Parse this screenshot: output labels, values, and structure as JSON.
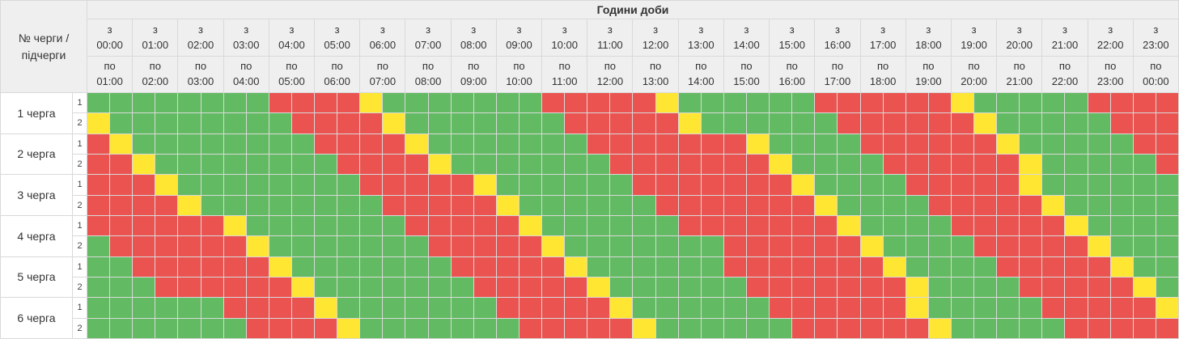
{
  "table": {
    "title": "Години доби",
    "corner_label": "№ черги / підчерги",
    "from_prefix": "з",
    "to_prefix": "по",
    "colors": {
      "green": "#62BA62",
      "red": "#EA5350",
      "yellow": "#FFE632"
    },
    "hours": [
      {
        "from": "00:00",
        "to": "01:00"
      },
      {
        "from": "01:00",
        "to": "02:00"
      },
      {
        "from": "02:00",
        "to": "03:00"
      },
      {
        "from": "03:00",
        "to": "04:00"
      },
      {
        "from": "04:00",
        "to": "05:00"
      },
      {
        "from": "05:00",
        "to": "06:00"
      },
      {
        "from": "06:00",
        "to": "07:00"
      },
      {
        "from": "07:00",
        "to": "08:00"
      },
      {
        "from": "08:00",
        "to": "09:00"
      },
      {
        "from": "09:00",
        "to": "10:00"
      },
      {
        "from": "10:00",
        "to": "11:00"
      },
      {
        "from": "11:00",
        "to": "12:00"
      },
      {
        "from": "12:00",
        "to": "13:00"
      },
      {
        "from": "13:00",
        "to": "14:00"
      },
      {
        "from": "14:00",
        "to": "15:00"
      },
      {
        "from": "15:00",
        "to": "16:00"
      },
      {
        "from": "16:00",
        "to": "17:00"
      },
      {
        "from": "17:00",
        "to": "18:00"
      },
      {
        "from": "18:00",
        "to": "19:00"
      },
      {
        "from": "19:00",
        "to": "20:00"
      },
      {
        "from": "20:00",
        "to": "21:00"
      },
      {
        "from": "21:00",
        "to": "22:00"
      },
      {
        "from": "22:00",
        "to": "23:00"
      },
      {
        "from": "23:00",
        "to": "00:00"
      }
    ],
    "cell_legend": "each hour column contains two half-hour cells; G=green, R=red, Y=yellow",
    "queues": [
      {
        "label": "1 черга",
        "sub": [
          {
            "id": "1",
            "cells": "GGGGGGGGRRRRYGGGGGGGRRRRRYGGGGGGRRRRRRYGGGGGRRRR"
          },
          {
            "id": "2",
            "cells": "YGGGGGGGGRRRRYGGGGGGGRRRRRYGGGGGGRRRRRRYGGGGGRRR"
          }
        ]
      },
      {
        "label": "2 черга",
        "sub": [
          {
            "id": "1",
            "cells": "RYGGGGGGGGRRRRYGGGGGGGRRRRRRRYGGGGRRRRRRYGGGGGRR"
          },
          {
            "id": "2",
            "cells": "RRYGGGGGGGGRRRRYGGGGGGGRRRRRRRYGGGGRRRRRRYGGGGGR"
          }
        ]
      },
      {
        "label": "3 черга",
        "sub": [
          {
            "id": "1",
            "cells": "RRRYGGGGGGGGRRRRRYGGGGGGRRRRRRRYGGGGRRRRRYGGGGGG"
          },
          {
            "id": "2",
            "cells": "RRRRYGGGGGGGGRRRRRYGGGGGGRRRRRRRYGGGGRRRRRYGGGGG"
          }
        ]
      },
      {
        "label": "4 черга",
        "sub": [
          {
            "id": "1",
            "cells": "RRRRRRYGGGGGGGRRRRRYGGGGGGRRRRRRRYGGGGRRRRRYGGGG"
          },
          {
            "id": "2",
            "cells": "GRRRRRRYGGGGGGGRRRRRYGGGGGGGRRRRRRYGGGGRRRRRYGGG"
          }
        ]
      },
      {
        "label": "5 черга",
        "sub": [
          {
            "id": "1",
            "cells": "GGRRRRRRYGGGGGGGRRRRRYGGGGGGRRRRRRRYGGGGRRRRRYGG"
          },
          {
            "id": "2",
            "cells": "GGGRRRRRRYGGGGGGGRRRRRYGGGGGGRRRRRRRYGGGGRRRRRYG"
          }
        ]
      },
      {
        "label": "6 черга",
        "sub": [
          {
            "id": "1",
            "cells": "GGGGGGRRRRYGGGGGGGRRRRRYGGGGGGRRRRRRYGGGGGRRRRRY"
          },
          {
            "id": "2",
            "cells": "GGGGGGGRRRRYGGGGGGGRRRRRYGGGGGGRRRRRRYGGGGGRRRRR"
          }
        ]
      }
    ]
  }
}
